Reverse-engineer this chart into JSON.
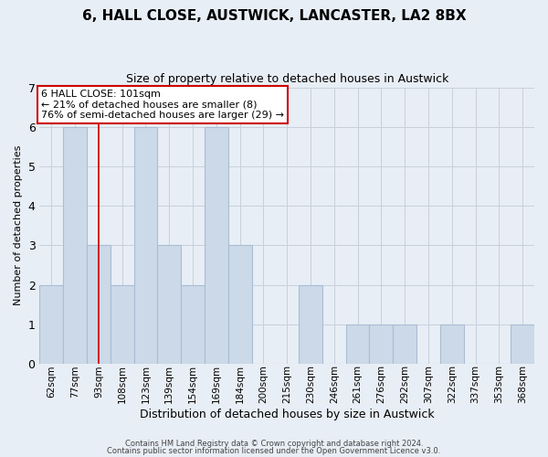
{
  "title": "6, HALL CLOSE, AUSTWICK, LANCASTER, LA2 8BX",
  "subtitle": "Size of property relative to detached houses in Austwick",
  "xlabel": "Distribution of detached houses by size in Austwick",
  "ylabel": "Number of detached properties",
  "bar_labels": [
    "62sqm",
    "77sqm",
    "93sqm",
    "108sqm",
    "123sqm",
    "139sqm",
    "154sqm",
    "169sqm",
    "184sqm",
    "200sqm",
    "215sqm",
    "230sqm",
    "246sqm",
    "261sqm",
    "276sqm",
    "292sqm",
    "307sqm",
    "322sqm",
    "337sqm",
    "353sqm",
    "368sqm"
  ],
  "bar_heights": [
    2,
    6,
    3,
    2,
    6,
    3,
    2,
    6,
    3,
    0,
    0,
    2,
    0,
    1,
    1,
    1,
    0,
    1,
    0,
    0,
    1
  ],
  "bar_color": "#ccd9e8",
  "bar_edge_color": "#aabdd4",
  "grid_color": "#c8d0dc",
  "red_line_x": 2,
  "annotation_title": "6 HALL CLOSE: 101sqm",
  "annotation_line1": "← 21% of detached houses are smaller (8)",
  "annotation_line2": "76% of semi-detached houses are larger (29) →",
  "annotation_box_facecolor": "#ffffff",
  "annotation_box_edgecolor": "#cc0000",
  "ylim": [
    0,
    7
  ],
  "yticks": [
    0,
    1,
    2,
    3,
    4,
    5,
    6,
    7
  ],
  "footer1": "Contains HM Land Registry data © Crown copyright and database right 2024.",
  "footer2": "Contains public sector information licensed under the Open Government Licence v3.0.",
  "background_color": "#e8eef5",
  "title_fontsize": 11,
  "subtitle_fontsize": 9,
  "ylabel_fontsize": 8,
  "xlabel_fontsize": 9,
  "tick_fontsize": 7.5,
  "footer_fontsize": 6,
  "footer_color": "#444444"
}
